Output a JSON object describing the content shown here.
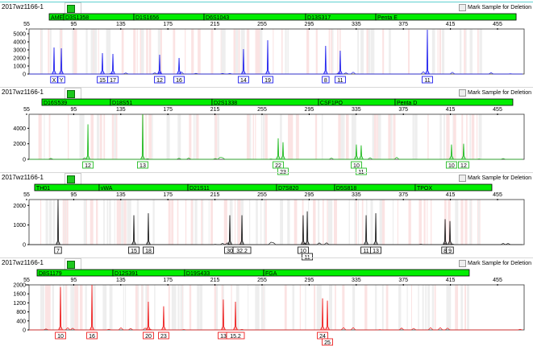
{
  "mark_label": "Mark Sample for Deletion",
  "chart_data": [
    {
      "type": "line",
      "sample": "2017wz1166-1",
      "color": "#2222ee",
      "xlim": [
        55,
        475
      ],
      "xticks": [
        55,
        95,
        135,
        175,
        215,
        255,
        295,
        335,
        375,
        415,
        455
      ],
      "ylim": [
        0,
        5600
      ],
      "yticks": [
        0,
        1000,
        2000,
        3000,
        4000,
        5000
      ],
      "markers": [
        {
          "name": "AMEL",
          "start": 74.2,
          "end": 86.5
        },
        {
          "name": "D3S1358",
          "start": 86.5,
          "end": 146.1
        },
        {
          "name": "D1S1656",
          "start": 146.1,
          "end": 205.7
        },
        {
          "name": "D6S1043",
          "start": 205.7,
          "end": 292
        },
        {
          "name": "D13S317",
          "start": 292,
          "end": 351.6
        },
        {
          "name": "Penta E",
          "start": 351.6,
          "end": 470.8
        }
      ],
      "peaks": [
        {
          "allele": "X",
          "bp": 78.3,
          "rfu": 3300
        },
        {
          "allele": "Y",
          "bp": 84.5,
          "rfu": 3200
        },
        {
          "allele": "15",
          "bp": 119.4,
          "rfu": 2600
        },
        {
          "allele": "17",
          "bp": 128.3,
          "rfu": 2500
        },
        {
          "allele": "12",
          "bp": 168,
          "rfu": 2400
        },
        {
          "allele": "16",
          "bp": 184.5,
          "rfu": 2000
        },
        {
          "allele": "14",
          "bp": 239.2,
          "rfu": 3100
        },
        {
          "allele": "19",
          "bp": 259.8,
          "rfu": 4200
        },
        {
          "allele": "8",
          "bp": 309,
          "rfu": 3500
        },
        {
          "allele": "11",
          "bp": 321.4,
          "rfu": 2900
        },
        {
          "allele": "11",
          "bp": 395.4,
          "rfu": 5500
        }
      ]
    },
    {
      "type": "line",
      "sample": "2017wz1166-1",
      "color": "#22bb22",
      "xlim": [
        55,
        475
      ],
      "xticks": [
        55,
        95,
        135,
        175,
        215,
        255,
        295,
        335,
        375,
        415,
        455
      ],
      "ylim": [
        0,
        5800
      ],
      "yticks": [
        0,
        2000,
        4000
      ],
      "markers": [
        {
          "name": "D16S539",
          "start": 68,
          "end": 126.2
        },
        {
          "name": "D18S51",
          "start": 126.2,
          "end": 212.5
        },
        {
          "name": "D2S1338",
          "start": 212.5,
          "end": 302.9
        },
        {
          "name": "CSF1PO",
          "start": 302.9,
          "end": 368
        },
        {
          "name": "Penta D",
          "start": 368,
          "end": 468
        }
      ],
      "peaks": [
        {
          "allele": "12",
          "bp": 107.1,
          "rfu": 4500
        },
        {
          "allele": "13",
          "bp": 153.6,
          "rfu": 5800
        },
        {
          "allele": "22",
          "bp": 268.7,
          "rfu": 2700
        },
        {
          "allele": "23",
          "bp": 272.8,
          "rfu": 2200,
          "row": 2
        },
        {
          "allele": "10",
          "bp": 335.1,
          "rfu": 1900
        },
        {
          "allele": "11",
          "bp": 339.2,
          "rfu": 1800,
          "row": 2
        },
        {
          "allele": "10",
          "bp": 415.9,
          "rfu": 1900
        },
        {
          "allele": "12",
          "bp": 426.2,
          "rfu": 2000
        }
      ]
    },
    {
      "type": "line",
      "sample": "2017wz1166-1",
      "color": "#222222",
      "xlim": [
        55,
        475
      ],
      "xticks": [
        55,
        95,
        135,
        175,
        215,
        255,
        295,
        335,
        375,
        415,
        455
      ],
      "ylim": [
        0,
        2300
      ],
      "yticks": [
        0,
        1000,
        2000
      ],
      "markers": [
        {
          "name": "TH01",
          "start": 61.8,
          "end": 116.6
        },
        {
          "name": "vWA",
          "start": 116.6,
          "end": 192
        },
        {
          "name": "D21S11",
          "start": 192,
          "end": 267.3
        },
        {
          "name": "D7S820",
          "start": 267.3,
          "end": 316.6
        },
        {
          "name": "D5S818",
          "start": 316.6,
          "end": 385.1
        },
        {
          "name": "TPOX",
          "start": 385.1,
          "end": 450.2
        }
      ],
      "peaks": [
        {
          "allele": "7",
          "bp": 81.7,
          "rfu": 2300
        },
        {
          "allele": "15",
          "bp": 146.1,
          "rfu": 1500
        },
        {
          "allele": "18",
          "bp": 158.4,
          "rfu": 1600
        },
        {
          "allele": "30",
          "bp": 227.6,
          "rfu": 1500
        },
        {
          "allele": "32.2",
          "bp": 237.9,
          "rfu": 1500
        },
        {
          "allele": "10",
          "bp": 289.9,
          "rfu": 1500
        },
        {
          "allele": "11",
          "bp": 293.4,
          "rfu": 1700,
          "row": 2
        },
        {
          "allele": "11",
          "bp": 343.4,
          "rfu": 1500
        },
        {
          "allele": "13",
          "bp": 351.6,
          "rfu": 1600
        },
        {
          "allele": "8",
          "bp": 410.5,
          "rfu": 1300
        },
        {
          "allele": "9",
          "bp": 414.6,
          "rfu": 1200
        }
      ]
    },
    {
      "type": "line",
      "sample": "2017wz1166-1",
      "color": "#ee2222",
      "xlim": [
        55,
        475
      ],
      "xticks": [
        55,
        95,
        135,
        175,
        215,
        255,
        295,
        335,
        375,
        415,
        455
      ],
      "ylim": [
        0,
        2000
      ],
      "yticks": [
        0,
        400,
        800,
        1200,
        1600,
        2000
      ],
      "markers": [
        {
          "name": "D8S1179",
          "start": 63.9,
          "end": 128.3
        },
        {
          "name": "D12S391",
          "start": 128.3,
          "end": 189.2
        },
        {
          "name": "D19S433",
          "start": 189.2,
          "end": 256.4
        },
        {
          "name": "FGA",
          "start": 256.4,
          "end": 431
        }
      ],
      "peaks": [
        {
          "allele": "10",
          "bp": 83.8,
          "rfu": 1900
        },
        {
          "allele": "16",
          "bp": 110.5,
          "rfu": 2000
        },
        {
          "allele": "20",
          "bp": 158.4,
          "rfu": 1250
        },
        {
          "allele": "23",
          "bp": 171.4,
          "rfu": 1050
        },
        {
          "allele": "13",
          "bp": 222.1,
          "rfu": 1350
        },
        {
          "allele": "15.2",
          "bp": 232.4,
          "rfu": 1250
        },
        {
          "allele": "24",
          "bp": 306.4,
          "rfu": 1400
        },
        {
          "allele": "25",
          "bp": 310.5,
          "rfu": 1300,
          "row": 2
        }
      ]
    }
  ]
}
